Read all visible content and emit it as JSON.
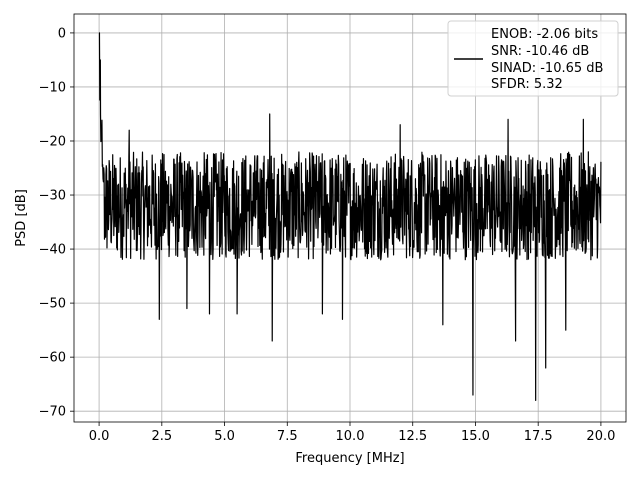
{
  "chart_data": {
    "type": "line",
    "title": "",
    "xlabel": "Frequency [MHz]",
    "ylabel": "PSD [dB]",
    "xlim": [
      -1.0,
      21.0
    ],
    "ylim": [
      -72.0,
      3.5
    ],
    "xticks": [
      0.0,
      2.5,
      5.0,
      7.5,
      10.0,
      12.5,
      15.0,
      17.5,
      20.0
    ],
    "xtick_labels": [
      "0.0",
      "2.5",
      "5.0",
      "7.5",
      "10.0",
      "12.5",
      "15.0",
      "17.5",
      "20.0"
    ],
    "yticks": [
      0,
      -10,
      -20,
      -30,
      -40,
      -50,
      -60,
      -70
    ],
    "ytick_labels": [
      "0",
      "−10",
      "−20",
      "−30",
      "−40",
      "−50",
      "−60",
      "−70"
    ],
    "grid": true,
    "legend_placement": "top-right",
    "series": [
      {
        "name": "ENOB: -2.06 bits\nSNR: -10.46 dB\nSINAD: -10.65 dB\nSFDR: 5.32",
        "color": "#000000",
        "x_range": [
          0.0,
          20.0
        ],
        "peak": {
          "x": 0.0,
          "y": 0.0
        },
        "noise_floor_approx": -30,
        "values_envelope_upper_approx": -22,
        "values_envelope_lower_approx": -42,
        "notable_dips": [
          {
            "x": 2.4,
            "y": -53
          },
          {
            "x": 3.5,
            "y": -51
          },
          {
            "x": 4.4,
            "y": -52
          },
          {
            "x": 5.5,
            "y": -52
          },
          {
            "x": 6.9,
            "y": -57
          },
          {
            "x": 8.9,
            "y": -52
          },
          {
            "x": 9.7,
            "y": -53
          },
          {
            "x": 13.7,
            "y": -54
          },
          {
            "x": 14.9,
            "y": -67
          },
          {
            "x": 16.6,
            "y": -57
          },
          {
            "x": 17.4,
            "y": -68
          },
          {
            "x": 17.8,
            "y": -62
          },
          {
            "x": 18.6,
            "y": -55
          }
        ],
        "notable_peaks": [
          {
            "x": 0.05,
            "y": -5
          },
          {
            "x": 1.2,
            "y": -18
          },
          {
            "x": 6.8,
            "y": -15
          },
          {
            "x": 12.0,
            "y": -17
          },
          {
            "x": 16.3,
            "y": -16
          },
          {
            "x": 19.3,
            "y": -16
          }
        ]
      }
    ]
  },
  "legend": {
    "line1": "ENOB: -2.06 bits",
    "line2": "SNR: -10.46 dB",
    "line3": "SINAD: -10.65 dB",
    "line4": "SFDR: 5.32"
  },
  "axes": {
    "xlabel": "Frequency [MHz]",
    "ylabel": "PSD [dB]"
  }
}
